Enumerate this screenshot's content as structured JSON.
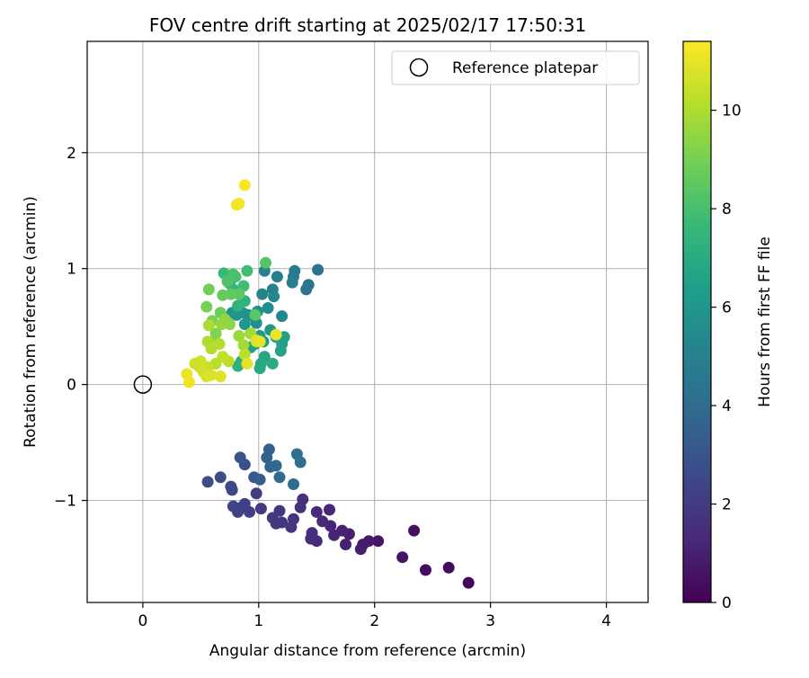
{
  "chart_data": {
    "type": "scatter",
    "title": "FOV centre drift starting at 2025/02/17 17:50:31",
    "xlabel": "Angular distance from reference (arcmin)",
    "ylabel": "Rotation from reference (arcmin)",
    "xlim": [
      -0.48,
      4.36
    ],
    "ylim": [
      -1.88,
      2.96
    ],
    "x_ticks": [
      0,
      1,
      2,
      3,
      4
    ],
    "x_tick_labels": [
      "0",
      "1",
      "2",
      "3",
      "4"
    ],
    "y_ticks": [
      -1,
      0,
      1,
      2
    ],
    "y_tick_labels": [
      "−1",
      "0",
      "1",
      "2"
    ],
    "grid": true,
    "legend": {
      "placement": "top-right",
      "entries": [
        {
          "label": "Reference platepar",
          "marker": "open-circle"
        }
      ]
    },
    "reference_point": {
      "x": 0,
      "y": 0
    },
    "colorbar": {
      "label": "Hours from first FF file",
      "colormap": "viridis",
      "range": [
        0,
        11.4
      ],
      "ticks": [
        0,
        2,
        4,
        6,
        8,
        10
      ],
      "tick_labels": [
        "0",
        "2",
        "4",
        "6",
        "8",
        "10"
      ]
    },
    "colormap_stops": [
      "#440154",
      "#482878",
      "#3e4989",
      "#31688e",
      "#26828e",
      "#1f9e89",
      "#35b779",
      "#6ece58",
      "#b5de2b",
      "#fde725"
    ],
    "points": [
      [
        2.81,
        -1.71,
        0.1
      ],
      [
        2.64,
        -1.58,
        0.3
      ],
      [
        2.44,
        -1.6,
        0.4
      ],
      [
        2.34,
        -1.26,
        0.5
      ],
      [
        2.24,
        -1.49,
        0.6
      ],
      [
        2.03,
        -1.35,
        0.7
      ],
      [
        1.95,
        -1.35,
        0.8
      ],
      [
        1.9,
        -1.38,
        0.85
      ],
      [
        1.88,
        -1.42,
        0.9
      ],
      [
        1.78,
        -1.29,
        1.0
      ],
      [
        1.75,
        -1.38,
        1.05
      ],
      [
        1.72,
        -1.26,
        1.1
      ],
      [
        1.65,
        -1.3,
        1.15
      ],
      [
        1.62,
        -1.22,
        1.2
      ],
      [
        1.61,
        -1.08,
        1.25
      ],
      [
        1.55,
        -1.18,
        1.3
      ],
      [
        1.5,
        -1.35,
        1.35
      ],
      [
        1.5,
        -1.1,
        1.4
      ],
      [
        1.46,
        -1.28,
        1.45
      ],
      [
        1.45,
        -1.33,
        1.5
      ],
      [
        1.38,
        -0.99,
        1.6
      ],
      [
        1.36,
        -1.06,
        1.65
      ],
      [
        1.3,
        -1.16,
        1.7
      ],
      [
        1.28,
        -1.23,
        1.75
      ],
      [
        1.2,
        -1.19,
        1.8
      ],
      [
        1.18,
        -1.09,
        1.85
      ],
      [
        1.15,
        -1.2,
        1.9
      ],
      [
        1.12,
        -1.15,
        1.95
      ],
      [
        1.02,
        -1.07,
        2.0
      ],
      [
        0.98,
        -0.94,
        2.05
      ],
      [
        0.92,
        -1.1,
        2.1
      ],
      [
        0.88,
        -1.03,
        2.15
      ],
      [
        0.85,
        -1.06,
        2.2
      ],
      [
        0.82,
        -1.1,
        2.25
      ],
      [
        0.78,
        -1.05,
        2.3
      ],
      [
        0.77,
        -0.91,
        2.4
      ],
      [
        0.76,
        -0.88,
        2.5
      ],
      [
        0.67,
        -0.8,
        2.6
      ],
      [
        0.56,
        -0.84,
        2.7
      ],
      [
        0.88,
        -0.69,
        2.8
      ],
      [
        0.84,
        -0.63,
        3.0
      ],
      [
        0.96,
        -0.8,
        3.2
      ],
      [
        1.01,
        -0.82,
        3.4
      ],
      [
        1.09,
        -0.56,
        3.5
      ],
      [
        1.07,
        -0.63,
        3.6
      ],
      [
        1.1,
        -0.71,
        3.7
      ],
      [
        1.15,
        -0.7,
        3.8
      ],
      [
        1.18,
        -0.8,
        3.9
      ],
      [
        1.3,
        -0.86,
        4.0
      ],
      [
        1.33,
        -0.6,
        4.1
      ],
      [
        1.36,
        -0.67,
        4.2
      ],
      [
        1.51,
        0.99,
        4.3
      ],
      [
        1.43,
        0.86,
        4.4
      ],
      [
        1.41,
        0.82,
        4.5
      ],
      [
        1.31,
        0.98,
        4.6
      ],
      [
        1.3,
        0.93,
        4.7
      ],
      [
        1.29,
        0.88,
        4.8
      ],
      [
        1.16,
        0.93,
        4.9
      ],
      [
        1.12,
        0.82,
        5.0
      ],
      [
        1.05,
        0.98,
        5.1
      ],
      [
        1.03,
        0.78,
        5.2
      ],
      [
        1.2,
        0.59,
        5.3
      ],
      [
        1.13,
        0.76,
        5.4
      ],
      [
        1.08,
        0.66,
        5.5
      ],
      [
        0.99,
        0.63,
        5.6
      ],
      [
        0.98,
        0.53,
        5.65
      ],
      [
        0.95,
        0.59,
        5.7
      ],
      [
        0.91,
        0.6,
        5.75
      ],
      [
        0.86,
        0.62,
        5.8
      ],
      [
        0.81,
        0.6,
        5.85
      ],
      [
        0.77,
        0.62,
        5.9
      ],
      [
        0.88,
        0.52,
        5.95
      ],
      [
        0.93,
        0.44,
        6.0
      ],
      [
        1.01,
        0.42,
        6.05
      ],
      [
        1.1,
        0.47,
        6.1
      ],
      [
        1.15,
        0.41,
        6.15
      ],
      [
        1.04,
        0.37,
        6.2
      ],
      [
        0.97,
        0.35,
        6.3
      ],
      [
        0.93,
        0.32,
        6.35
      ],
      [
        1.22,
        0.41,
        6.4
      ],
      [
        1.2,
        0.35,
        6.5
      ],
      [
        1.19,
        0.29,
        6.6
      ],
      [
        1.05,
        0.24,
        6.7
      ],
      [
        1.02,
        0.18,
        6.8
      ],
      [
        1.01,
        0.14,
        6.9
      ],
      [
        1.12,
        0.18,
        7.0
      ],
      [
        0.85,
        0.2,
        7.1
      ],
      [
        0.82,
        0.16,
        7.2
      ],
      [
        0.88,
        0.72,
        7.3
      ],
      [
        0.82,
        0.68,
        7.4
      ],
      [
        0.78,
        0.82,
        7.5
      ],
      [
        0.75,
        0.87,
        7.6
      ],
      [
        0.7,
        0.96,
        7.7
      ],
      [
        0.9,
        0.98,
        7.8
      ],
      [
        0.87,
        0.85,
        7.9
      ],
      [
        0.8,
        0.93,
        8.0
      ],
      [
        0.78,
        0.95,
        8.1
      ],
      [
        0.73,
        0.89,
        8.2
      ],
      [
        1.06,
        1.05,
        8.3
      ],
      [
        0.97,
        0.6,
        8.4
      ],
      [
        0.83,
        0.78,
        8.5
      ],
      [
        0.76,
        0.78,
        8.6
      ],
      [
        0.69,
        0.77,
        8.7
      ],
      [
        0.67,
        0.62,
        8.8
      ],
      [
        0.57,
        0.82,
        8.9
      ],
      [
        0.55,
        0.67,
        9.0
      ],
      [
        0.6,
        0.55,
        9.1
      ],
      [
        0.63,
        0.44,
        9.2
      ],
      [
        0.62,
        0.35,
        9.3
      ],
      [
        0.75,
        0.52,
        9.4
      ],
      [
        0.71,
        0.56,
        9.5
      ],
      [
        0.68,
        0.52,
        9.6
      ],
      [
        0.83,
        0.42,
        9.7
      ],
      [
        0.87,
        0.34,
        9.8
      ],
      [
        0.93,
        0.44,
        9.85
      ],
      [
        0.98,
        0.37,
        9.9
      ],
      [
        0.57,
        0.51,
        9.95
      ],
      [
        0.56,
        0.37,
        10.0
      ],
      [
        0.59,
        0.31,
        10.05
      ],
      [
        0.66,
        0.35,
        10.1
      ],
      [
        0.63,
        0.18,
        10.15
      ],
      [
        0.88,
        0.26,
        10.2
      ],
      [
        0.74,
        0.2,
        10.3
      ],
      [
        0.69,
        0.24,
        10.35
      ],
      [
        0.56,
        0.15,
        10.4
      ],
      [
        0.49,
        0.15,
        10.5
      ],
      [
        0.45,
        0.18,
        10.55
      ],
      [
        0.5,
        0.2,
        10.6
      ],
      [
        0.52,
        0.11,
        10.65
      ],
      [
        0.55,
        0.07,
        10.7
      ],
      [
        0.59,
        0.08,
        10.8
      ],
      [
        0.67,
        0.07,
        10.85
      ],
      [
        0.9,
        0.18,
        10.9
      ],
      [
        0.98,
        0.38,
        10.95
      ],
      [
        1.01,
        0.37,
        11.0
      ],
      [
        1.15,
        0.43,
        11.05
      ],
      [
        0.38,
        0.09,
        11.1
      ],
      [
        0.4,
        0.02,
        11.15
      ],
      [
        0.81,
        1.55,
        11.2
      ],
      [
        0.83,
        1.56,
        11.25
      ],
      [
        0.88,
        1.72,
        11.3
      ]
    ]
  }
}
